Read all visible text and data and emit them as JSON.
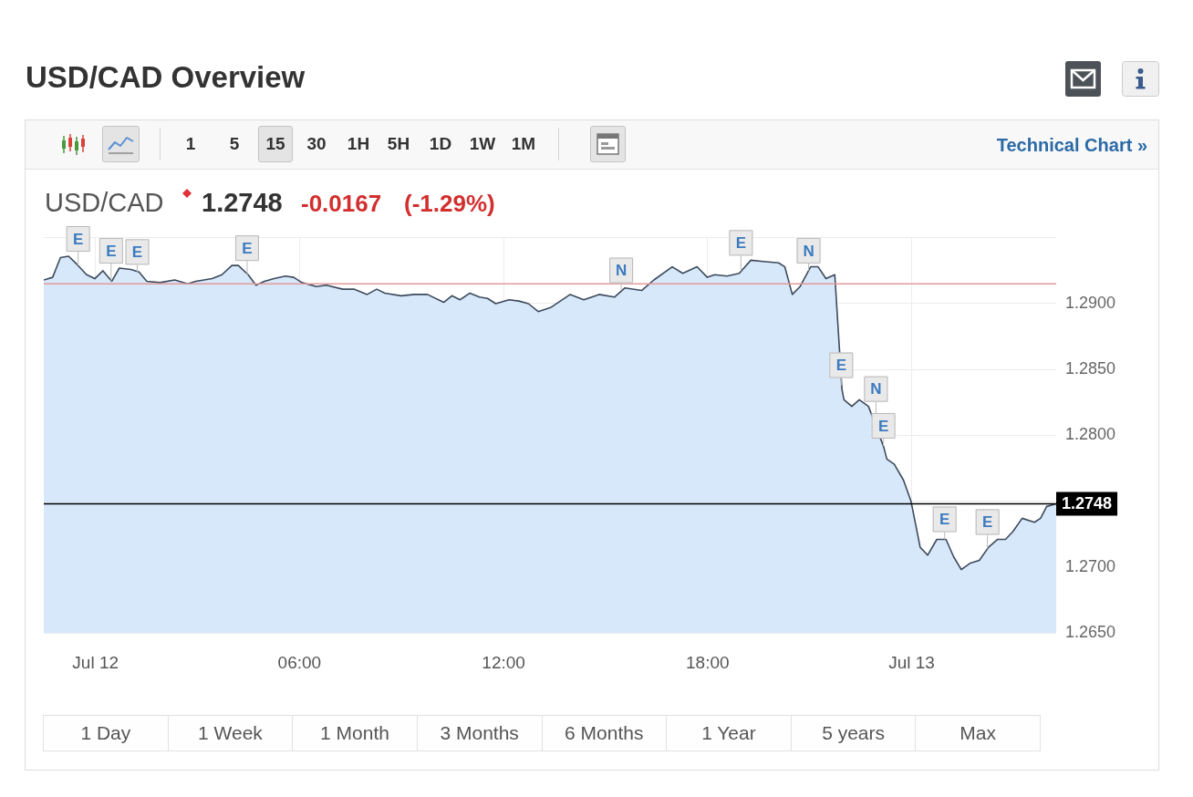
{
  "chart_data": {
    "type": "area",
    "title": "USD/CAD Overview",
    "subtitle": "USD/CAD",
    "annotations": [
      "1",
      "5",
      "15",
      "30",
      "1H",
      "5H",
      "1D",
      "1W",
      "1M",
      "Technical Chart »",
      "1.2748",
      "-0.0167",
      "(-1.29%)",
      "1 Day",
      "1 Week",
      "1 Month",
      "3 Months",
      "6 Months",
      "1 Year",
      "5 years",
      "Max",
      {
        "text": "E",
        "x": -0.51,
        "y": 1.2929
      },
      {
        "text": "E",
        "x": 0.46,
        "y": 1.2917
      },
      {
        "text": "E",
        "x": 1.23,
        "y": 1.2924
      },
      {
        "text": "E",
        "x": 4.46,
        "y": 1.2922
      },
      {
        "text": "N",
        "x": 15.46,
        "y": 1.291
      },
      {
        "text": "E",
        "x": 18.98,
        "y": 1.2925
      },
      {
        "text": "N",
        "x": 20.97,
        "y": 1.2925
      },
      {
        "text": "E",
        "x": 21.93,
        "y": 1.2838
      },
      {
        "text": "N",
        "x": 22.95,
        "y": 1.2807
      },
      {
        "text": "E",
        "x": 23.17,
        "y": 1.2792
      },
      {
        "text": "E",
        "x": 24.97,
        "y": 1.2721
      },
      {
        "text": "E",
        "x": 26.23,
        "y": 1.2714
      }
    ],
    "x": [
      -1.52,
      -1.26,
      -1.03,
      -0.79,
      -0.55,
      -0.26,
      -0.02,
      0.22,
      0.48,
      0.7,
      1.04,
      1.28,
      1.51,
      1.9,
      2.33,
      2.71,
      2.95,
      3.43,
      3.72,
      4.01,
      4.2,
      4.49,
      4.72,
      4.97,
      5.25,
      5.59,
      5.83,
      6.07,
      6.5,
      6.79,
      7.27,
      7.6,
      7.99,
      8.27,
      8.51,
      8.99,
      9.38,
      9.76,
      10.24,
      10.48,
      10.72,
      11.01,
      11.29,
      11.53,
      11.77,
      12.16,
      12.45,
      12.73,
      13.02,
      13.26,
      13.38,
      13.96,
      14.36,
      14.81,
      15.26,
      15.57,
      16.06,
      16.42,
      16.96,
      17.27,
      17.69,
      17.99,
      18.21,
      18.57,
      18.93,
      19.27,
      19.64,
      20.09,
      20.27,
      20.49,
      20.72,
      21.03,
      21.25,
      21.48,
      21.74,
      21.95,
      22.01,
      22.24,
      22.46,
      22.73,
      23.18,
      23.27,
      23.49,
      23.76,
      23.98,
      24.12,
      24.25,
      24.47,
      24.74,
      25.01,
      25.23,
      25.46,
      25.73,
      25.99,
      26.26,
      26.53,
      26.76,
      26.98,
      27.25,
      27.61,
      27.79,
      27.97,
      28.25
    ],
    "values": [
      1.2918,
      1.292,
      1.2935,
      1.2936,
      1.293,
      1.2922,
      1.2919,
      1.2925,
      1.2917,
      1.2927,
      1.2926,
      1.2924,
      1.2917,
      1.2916,
      1.2918,
      1.2915,
      1.2917,
      1.2919,
      1.2922,
      1.2929,
      1.2929,
      1.2922,
      1.2914,
      1.2917,
      1.2919,
      1.2921,
      1.292,
      1.2916,
      1.2913,
      1.2914,
      1.2911,
      1.2911,
      1.2907,
      1.2911,
      1.2908,
      1.2906,
      1.2907,
      1.2907,
      1.2901,
      1.2906,
      1.2903,
      1.2908,
      1.2905,
      1.2904,
      1.29,
      1.2903,
      1.2902,
      1.29,
      1.2894,
      1.2896,
      1.2897,
      1.2907,
      1.2903,
      1.2907,
      1.2905,
      1.2912,
      1.291,
      1.2918,
      1.2928,
      1.2923,
      1.2928,
      1.292,
      1.2922,
      1.2921,
      1.2923,
      1.2933,
      1.2932,
      1.2931,
      1.2928,
      1.2907,
      1.2913,
      1.2928,
      1.2928,
      1.2919,
      1.2922,
      1.2835,
      1.2827,
      1.2822,
      1.2827,
      1.2822,
      1.2791,
      1.2782,
      1.2778,
      1.2766,
      1.275,
      1.2732,
      1.2715,
      1.2709,
      1.2721,
      1.2721,
      1.2708,
      1.2698,
      1.2703,
      1.2705,
      1.2715,
      1.2721,
      1.2721,
      1.2727,
      1.2737,
      1.2734,
      1.2737,
      1.2746,
      1.2748
    ],
    "color": "#d7e8fb",
    "xlim": [
      -1.52,
      28.25
    ],
    "xticks": [
      {
        "value": 0,
        "label": "Jul 12"
      },
      {
        "value": 6,
        "label": "06:00"
      },
      {
        "value": 12,
        "label": "12:00"
      },
      {
        "value": 18,
        "label": "18:00"
      },
      {
        "value": 24,
        "label": "Jul 13"
      }
    ],
    "ylim": [
      1.265,
      1.295
    ],
    "yticks": [
      {
        "value": 1.265,
        "label": "1.2650"
      },
      {
        "value": 1.27,
        "label": "1.2700"
      },
      {
        "value": 1.275,
        "label": null
      },
      {
        "value": 1.28,
        "label": "1.2800"
      },
      {
        "value": 1.285,
        "label": "1.2850"
      },
      {
        "value": 1.29,
        "label": "1.2900"
      },
      {
        "value": 1.295,
        "label": null
      }
    ],
    "ref_lines": [
      {
        "axis": "y",
        "value": 1.2915,
        "color": "#e39a9a"
      },
      {
        "axis": "y",
        "value": 1.2748,
        "label": "1.2748",
        "color": "#000000"
      }
    ],
    "grid": true
  }
}
